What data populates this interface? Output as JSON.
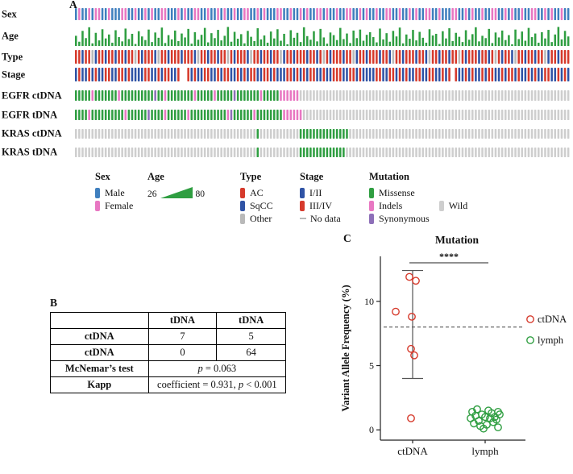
{
  "panel_a": {
    "label": "A",
    "rows": [
      "Sex",
      "Age",
      "Type",
      "Stage",
      "EGFR ctDNA",
      "EGFR tDNA",
      "KRAS ctDNA",
      "KRAS tDNA"
    ],
    "colors": {
      "male": "#3f7fbe",
      "female": "#e877c2",
      "age": "#2f9e41",
      "ac": "#d63a2c",
      "sqcc": "#2f53a5",
      "other": "#b9b9b9",
      "stage12": "#2f53a5",
      "stage34": "#d63a2c",
      "nodata": "#b9b9b9",
      "missense": "#2f9e41",
      "indels": "#e877c2",
      "synonymous": "#8d6fb8",
      "wild": "#cecece"
    },
    "legend": {
      "sex": {
        "title": "Sex",
        "items": [
          {
            "label": "Male"
          },
          {
            "label": "Female"
          }
        ]
      },
      "age": {
        "title": "Age",
        "min": "26",
        "max": "80"
      },
      "type": {
        "title": "Type",
        "items": [
          {
            "label": "AC"
          },
          {
            "label": "SqCC"
          },
          {
            "label": "Other"
          }
        ]
      },
      "stage": {
        "title": "Stage",
        "items": [
          {
            "label": "I/II"
          },
          {
            "label": "III/IV"
          },
          {
            "label": "No data"
          }
        ]
      },
      "mutation": {
        "title": "Mutation",
        "col1": [
          {
            "label": "Missense"
          },
          {
            "label": "Indels"
          },
          {
            "label": "Synonymous"
          }
        ],
        "col2": [
          {
            "label": "Wild"
          }
        ]
      }
    }
  },
  "panel_b": {
    "label": "B",
    "table": {
      "col_headers": [
        "tDNA",
        "tDNA"
      ],
      "row1_label": "ctDNA",
      "row1_c1": "7",
      "row1_c2": "5",
      "row2_label": "ctDNA",
      "row2_c1": "0",
      "row2_c2": "64",
      "row3_label": "McNemar’s test",
      "row3_p": "p",
      "row3_rest": " = 0.063",
      "row4_label": "Kapp",
      "row4_pre": "coefficient = 0.931, ",
      "row4_p": "p",
      "row4_post": " < 0.001"
    }
  },
  "panel_c": {
    "label": "C"
  },
  "chart_data": [
    {
      "type": "heatmap",
      "name": "oncoprint",
      "n_samples": 150,
      "rows": [
        "Sex",
        "Age",
        "Type",
        "Stage",
        "EGFR ctDNA",
        "EGFR tDNA",
        "KRAS ctDNA",
        "KRAS tDNA"
      ],
      "age_range": [
        26,
        80
      ],
      "encoding": {
        "sex": {
          "M": "Male",
          "F": "Female"
        },
        "type": {
          "A": "AC",
          "S": "SqCC",
          "O": "Other"
        },
        "stage": {
          "1": "I/II",
          "3": "III/IV",
          "N": "No data"
        },
        "mutation": {
          "M": "Missense",
          "I": "Indels",
          "S": "Synonymous",
          "W": "Wild"
        }
      },
      "tracks": {
        "sex": [
          "MFMMFMFFMM",
          "FMMMFFMMFM",
          "MFMFMMFFMM",
          "MFMFMMFFMM",
          "FMMFMFMMFM",
          "MFFMMFMFMM",
          "MFFMMFMMFM",
          "FMMFFMFMMF",
          "MMFFMMFMFM",
          "MFMMFFMMFM",
          "MFMFMMFFMM",
          "FMMMFFMMFM",
          "FMMFMMFFMM",
          "FMFMMFMMFF",
          "MMFMFMMFMM"
        ],
        "age": [
          52,
          34,
          67,
          45,
          78,
          29,
          61,
          38,
          72,
          44,
          56,
          31,
          69,
          48,
          35,
          74,
          42,
          58,
          27,
          66,
          50,
          39,
          71,
          33,
          62,
          46,
          77,
          30,
          54,
          41,
          68,
          36,
          59,
          47,
          73,
          28,
          63,
          40,
          55,
          76,
          32,
          60,
          45,
          70,
          38,
          52,
          79,
          34,
          64,
          43,
          57,
          29,
          67,
          49,
          36,
          75,
          41,
          53,
          31,
          65,
          44,
          72,
          37,
          58,
          26,
          69,
          46,
          61,
          33,
          78,
          51,
          40,
          66,
          35,
          73,
          47,
          28,
          62,
          54,
          39,
          76,
          42,
          59,
          30,
          68,
          45,
          71,
          37,
          55,
          63,
          48,
          32,
          74,
          41,
          60,
          34,
          67,
          50,
          77,
          29,
          56,
          43,
          70,
          38,
          64,
          46,
          31,
          72,
          53,
          58,
          27,
          66,
          44,
          75,
          36,
          61,
          49,
          33,
          69,
          40,
          57,
          78,
          35,
          52,
          45,
          73,
          30,
          62,
          47,
          68,
          39,
          54,
          26,
          71,
          42,
          65,
          37,
          76,
          48,
          59,
          31,
          63,
          44,
          70,
          33,
          56,
          79,
          41,
          67,
          50
        ],
        "type": [
          "AASAAOSAAS",
          "AASAASAAOA",
          "SAAASOAASA",
          "AASAAASOAA",
          "SAASAAOASA",
          "AASOAASAAS",
          "AAOSAASAAA",
          "SAASAOASAA",
          "ASAAOSAASA",
          "AASAASOAAS",
          "AAASAASOAA",
          "SAASAAOASA",
          "AASAASAOAS",
          "AASOAASAAS",
          "AAOSAASAAA"
        ],
        "stage": [
          "1311313113",
          "3113313111",
          "1331131331",
          "13NN313113",
          "3113133113",
          "1313311331",
          "3111331313",
          "1331131133",
          "3113313111",
          "1331133131",
          "3113311331",
          "1313N31131",
          "3113133113",
          "1331311313",
          "1133113131"
        ],
        "egfr_ctdna": [
          "MMMMMIMMMM",
          "MMMIMMMMMM",
          "MMMMSMMIMM",
          "MMMMMMIMMM",
          "MMIMMMMMSM",
          "MMMMMMIMMM",
          "MMIIIIIIWW",
          "WWWWWWWWWW",
          "WWWWWWWWWW",
          "WWWWWWWWWW",
          "WWWWWWWWWW",
          "WWWWWWWWWW",
          "WWWWWWWWWW",
          "WWWWWWWWWW",
          "WWWWWWWWWW"
        ],
        "egfr_tdna": [
          "MMMMIMMMMM",
          "MMMMMIMMMM",
          "MMSMMMMIMM",
          "MMMMIMMMMM",
          "MMMMMMISMM",
          "MMMMIMMMMM",
          "MMMIIIIIIW",
          "WWWWWWWWWW",
          "WWWWWWWWWW",
          "WWWWWWWWWW",
          "WWWWWWWWWW",
          "WWWWWWWWWW",
          "WWWWWWWWWW",
          "WWWWWWWWWW",
          "WWWWWWWWWW"
        ],
        "kras_ctdna": [
          "WWWWWWWWWW",
          "WWWWWWWWWW",
          "WWWWWWWWWW",
          "WWWWWWWWWW",
          "WWWWWWWWWW",
          "WWWWWMWWWW",
          "WWWWWWWWMM",
          "MMMMMMMMMM",
          "MMMWWWWWWW",
          "WWWWWWWWWW",
          "WWWWWWWWWW",
          "WWWWWWWWWW",
          "WWWWWWWWWW",
          "WWWWWWWWWW",
          "WWWWWWWWWW"
        ],
        "kras_tdna": [
          "WWWWWWWWWW",
          "WWWWWWWWWW",
          "WWWWWWWWWW",
          "WWWWWWWWWW",
          "WWWWWWWWWW",
          "WWWWWMWWWW",
          "WWWWWWWWMM",
          "MMMMMMMMMM",
          "MMWWWWWWWW",
          "WWWWWWWWWW",
          "WWWWWWWWWW",
          "WWWWWWWWWW",
          "WWWWWWWWWW",
          "WWWWWWWWWW",
          "WWWWWWWWWW"
        ]
      }
    },
    {
      "type": "scatter",
      "title": "Mutation",
      "ylabel": "Variant Allele Frequency (%)",
      "categories": [
        "ctDNA",
        "lymph"
      ],
      "series": [
        {
          "name": "ctDNA",
          "color": "#d63a2c",
          "values": [
            11.9,
            11.6,
            9.2,
            8.8,
            6.3,
            5.8,
            0.9
          ],
          "jitter": [
            -4,
            4,
            -21,
            -1,
            -2,
            2,
            -2
          ]
        },
        {
          "name": "lymph",
          "color": "#2f9e41",
          "values": [
            1.6,
            1.5,
            1.4,
            1.4,
            1.3,
            1.2,
            1.2,
            1.1,
            1.0,
            1.0,
            0.9,
            0.9,
            0.8,
            0.7,
            0.6,
            0.5,
            0.4,
            0.3,
            0.2,
            0.1
          ],
          "jitter": [
            -10,
            4,
            16,
            -16,
            8,
            -4,
            18,
            -12,
            0,
            12,
            -18,
            6,
            14,
            -8,
            10,
            -14,
            2,
            -6,
            16,
            -2
          ]
        }
      ],
      "ylim": [
        -0.8,
        13.5
      ],
      "yticks": [
        0,
        5,
        10
      ],
      "threshold_line": 8,
      "errorbar": {
        "category": "ctDNA",
        "low": 4.0,
        "high": 12.4
      },
      "significance": "****",
      "legend_position": "right"
    }
  ]
}
